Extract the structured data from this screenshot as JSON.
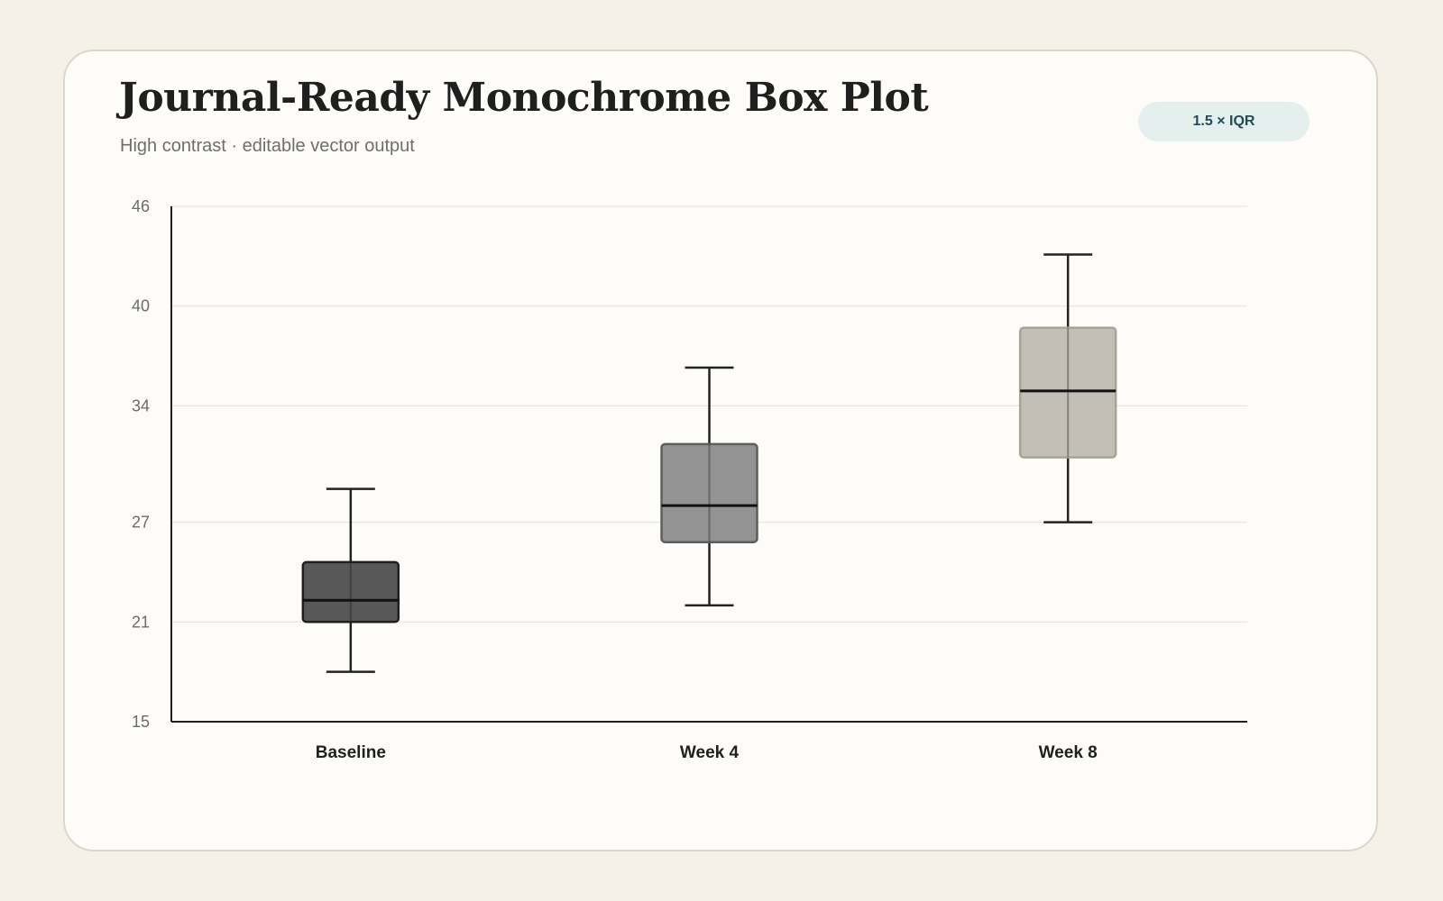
{
  "header": {
    "title": "Journal-Ready Monochrome Box Plot",
    "subtitle": "High contrast · editable vector output",
    "badge": "1.5 × IQR"
  },
  "chart_data": {
    "type": "box",
    "title": "Journal-Ready Monochrome Box Plot",
    "subtitle": "High contrast · editable vector output",
    "xlabel": "",
    "ylabel": "",
    "ylim": [
      15,
      46
    ],
    "yticks": [
      15,
      21,
      27,
      34,
      40,
      46
    ],
    "grid": true,
    "whisker_rule": "1.5 × IQR",
    "categories": [
      "Baseline",
      "Week 4",
      "Week 8"
    ],
    "boxes": [
      {
        "label": "Baseline",
        "min": 18,
        "q1": 21,
        "median": 22.3,
        "q3": 24.6,
        "max": 29,
        "fill": "#555555",
        "stroke": "#1f1f1f"
      },
      {
        "label": "Week 4",
        "min": 22,
        "q1": 25.8,
        "median": 28,
        "q3": 31.7,
        "max": 36.3,
        "fill": "#919191",
        "stroke": "#5e5e5e"
      },
      {
        "label": "Week 8",
        "min": 27,
        "q1": 30.9,
        "median": 34.9,
        "q3": 38.7,
        "max": 43.1,
        "fill": "#c2beb6",
        "stroke": "#a6a39b"
      }
    ],
    "colors": {
      "axis": "#1f1f1f",
      "grid": "#e3e0da",
      "whisker": "#222222",
      "median": "#111111"
    }
  }
}
